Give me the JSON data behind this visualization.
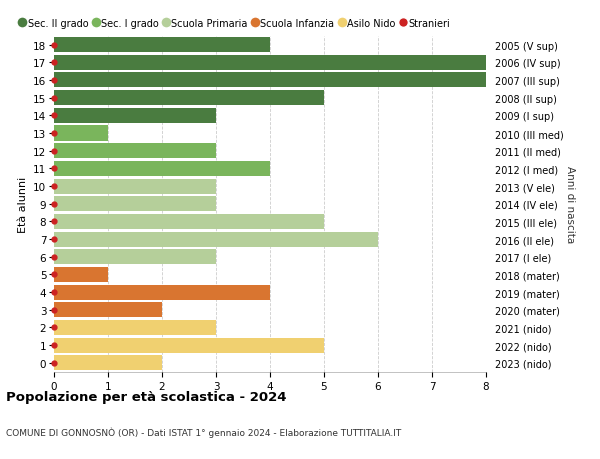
{
  "ages": [
    18,
    17,
    16,
    15,
    14,
    13,
    12,
    11,
    10,
    9,
    8,
    7,
    6,
    5,
    4,
    3,
    2,
    1,
    0
  ],
  "right_labels": [
    "2005 (V sup)",
    "2006 (IV sup)",
    "2007 (III sup)",
    "2008 (II sup)",
    "2009 (I sup)",
    "2010 (III med)",
    "2011 (II med)",
    "2012 (I med)",
    "2013 (V ele)",
    "2014 (IV ele)",
    "2015 (III ele)",
    "2016 (II ele)",
    "2017 (I ele)",
    "2018 (mater)",
    "2019 (mater)",
    "2020 (mater)",
    "2021 (nido)",
    "2022 (nido)",
    "2023 (nido)"
  ],
  "values": [
    4,
    8,
    8,
    5,
    3,
    1,
    3,
    4,
    3,
    3,
    5,
    6,
    3,
    1,
    4,
    2,
    3,
    5,
    2
  ],
  "colors": [
    "#4a7c40",
    "#4a7c40",
    "#4a7c40",
    "#4a7c40",
    "#4a7c40",
    "#7ab55c",
    "#7ab55c",
    "#7ab55c",
    "#b5cf9a",
    "#b5cf9a",
    "#b5cf9a",
    "#b5cf9a",
    "#b5cf9a",
    "#d97530",
    "#d97530",
    "#d97530",
    "#f0d070",
    "#f0d070",
    "#f0d070"
  ],
  "legend_labels": [
    "Sec. II grado",
    "Sec. I grado",
    "Scuola Primaria",
    "Scuola Infanzia",
    "Asilo Nido",
    "Stranieri"
  ],
  "legend_colors": [
    "#4a7c40",
    "#7ab55c",
    "#b5cf9a",
    "#d97530",
    "#f0d070",
    "#cc2222"
  ],
  "stranieri_marker_color": "#cc2222",
  "title": "Popolazione per età scolastica - 2024",
  "subtitle": "COMUNE DI GONNOSNÒ (OR) - Dati ISTAT 1° gennaio 2024 - Elaborazione TUTTITALIA.IT",
  "right_axis_label": "Anni di nascita",
  "ylabel": "Età alunni",
  "xlim": [
    0,
    8
  ],
  "xticks": [
    0,
    1,
    2,
    3,
    4,
    5,
    6,
    7,
    8
  ],
  "bg_color": "#ffffff",
  "grid_color": "#cccccc",
  "bar_height": 0.85
}
